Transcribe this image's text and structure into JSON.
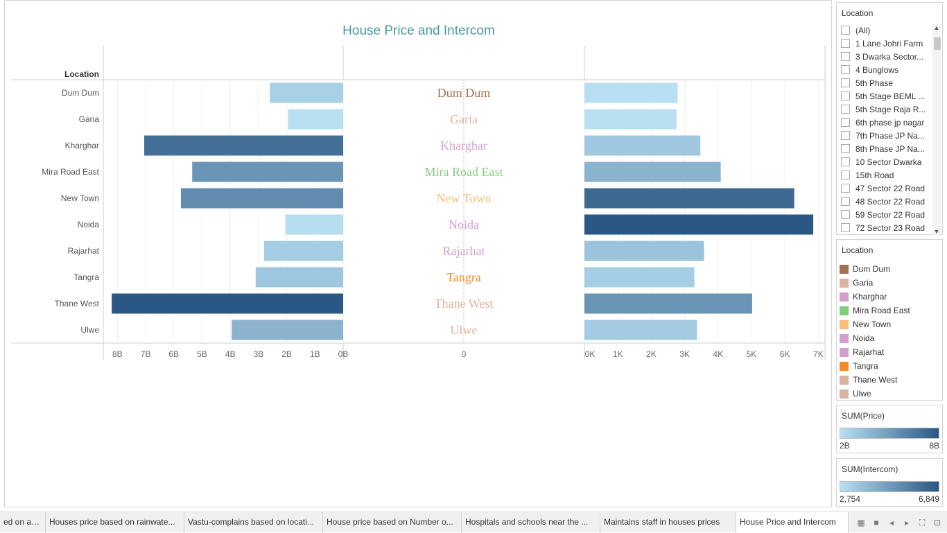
{
  "chart_data": {
    "type": "bar",
    "title": "House Price and Intercom",
    "row_header": "Location",
    "categories": [
      "Dum Dum",
      "Garia",
      "Kharghar",
      "Mira Road East",
      "New Town",
      "Noida",
      "Rajarhat",
      "Tangra",
      "Thane West",
      "Ulwe"
    ],
    "series": [
      {
        "name": "SUM(Price)",
        "values": [
          2.6,
          1.95,
          7.05,
          5.35,
          5.75,
          2.05,
          2.8,
          3.1,
          8.2,
          3.95
        ],
        "unit": "B",
        "direction": "reversed"
      },
      {
        "name": "SUM(Intercom)",
        "values": [
          2790,
          2754,
          3470,
          4080,
          6280,
          6849,
          3580,
          3290,
          5020,
          3370
        ],
        "unit": "K"
      }
    ],
    "price_axis": {
      "range": [
        0,
        8.5
      ],
      "ticks": [
        "8B",
        "7B",
        "6B",
        "5B",
        "4B",
        "3B",
        "2B",
        "1B",
        "0B"
      ],
      "tick_values": [
        8,
        7,
        6,
        5,
        4,
        3,
        2,
        1,
        0
      ]
    },
    "center_axis": {
      "ticks": [
        "0"
      ]
    },
    "intercom_axis": {
      "range": [
        0,
        7200
      ],
      "ticks": [
        "0K",
        "1K",
        "2K",
        "3K",
        "4K",
        "5K",
        "6K",
        "7K"
      ],
      "tick_values": [
        0,
        1000,
        2000,
        3000,
        4000,
        5000,
        6000,
        7000
      ]
    },
    "label_colors": [
      "#9e7152",
      "#d8b3a3",
      "#d3a0cc",
      "#7fcf7a",
      "#f9be7c",
      "#d3a0cc",
      "#d3a0cc",
      "#f28b28",
      "#d8b3a3",
      "#d8b3a3"
    ]
  },
  "filter": {
    "title": "Location",
    "items": [
      "(All)",
      "1 Lane Johri Farm",
      "3 Dwarka Sector...",
      "4 Bunglows",
      "5th Phase",
      "5th Stage BEML ...",
      "5th Stage Raja R...",
      "6th phase jp nagar",
      "7th Phase JP Na...",
      "8th Phase JP Na...",
      "10 Sector Dwarka",
      "15th Road",
      "47 Sector 22 Road",
      "48 Sector 22 Road",
      "59 Sector 22 Road",
      "72 Sector 23 Road"
    ]
  },
  "legend": {
    "title": "Location",
    "items": [
      {
        "label": "Dum Dum",
        "color": "#9e7152"
      },
      {
        "label": "Garia",
        "color": "#d8b3a3"
      },
      {
        "label": "Kharghar",
        "color": "#d3a0cc"
      },
      {
        "label": "Mira Road East",
        "color": "#7fcf7a"
      },
      {
        "label": "New Town",
        "color": "#f9be7c"
      },
      {
        "label": "Noida",
        "color": "#d3a0cc"
      },
      {
        "label": "Rajarhat",
        "color": "#d3a0cc"
      },
      {
        "label": "Tangra",
        "color": "#f28b28"
      },
      {
        "label": "Thane West",
        "color": "#d8b3a3"
      },
      {
        "label": "Ulwe",
        "color": "#d8b3a3"
      }
    ]
  },
  "price_legend": {
    "title": "SUM(Price)",
    "min": "2B",
    "max": "8B",
    "color_low": "#b8dff2",
    "color_high": "#2a5783"
  },
  "intercom_legend": {
    "title": "SUM(Intercom)",
    "min": "2,754",
    "max": "6,849",
    "color_low": "#b8dff2",
    "color_high": "#2a5783"
  },
  "tabs": [
    {
      "label": "ed on are..."
    },
    {
      "label": "Houses price based on rainwate..."
    },
    {
      "label": "Vastu-complains based on locati..."
    },
    {
      "label": "House price based on Number o..."
    },
    {
      "label": "Hospitals and schools near the ..."
    },
    {
      "label": "Maintains staff in houses prices"
    },
    {
      "label": "House Price and Intercom"
    }
  ]
}
